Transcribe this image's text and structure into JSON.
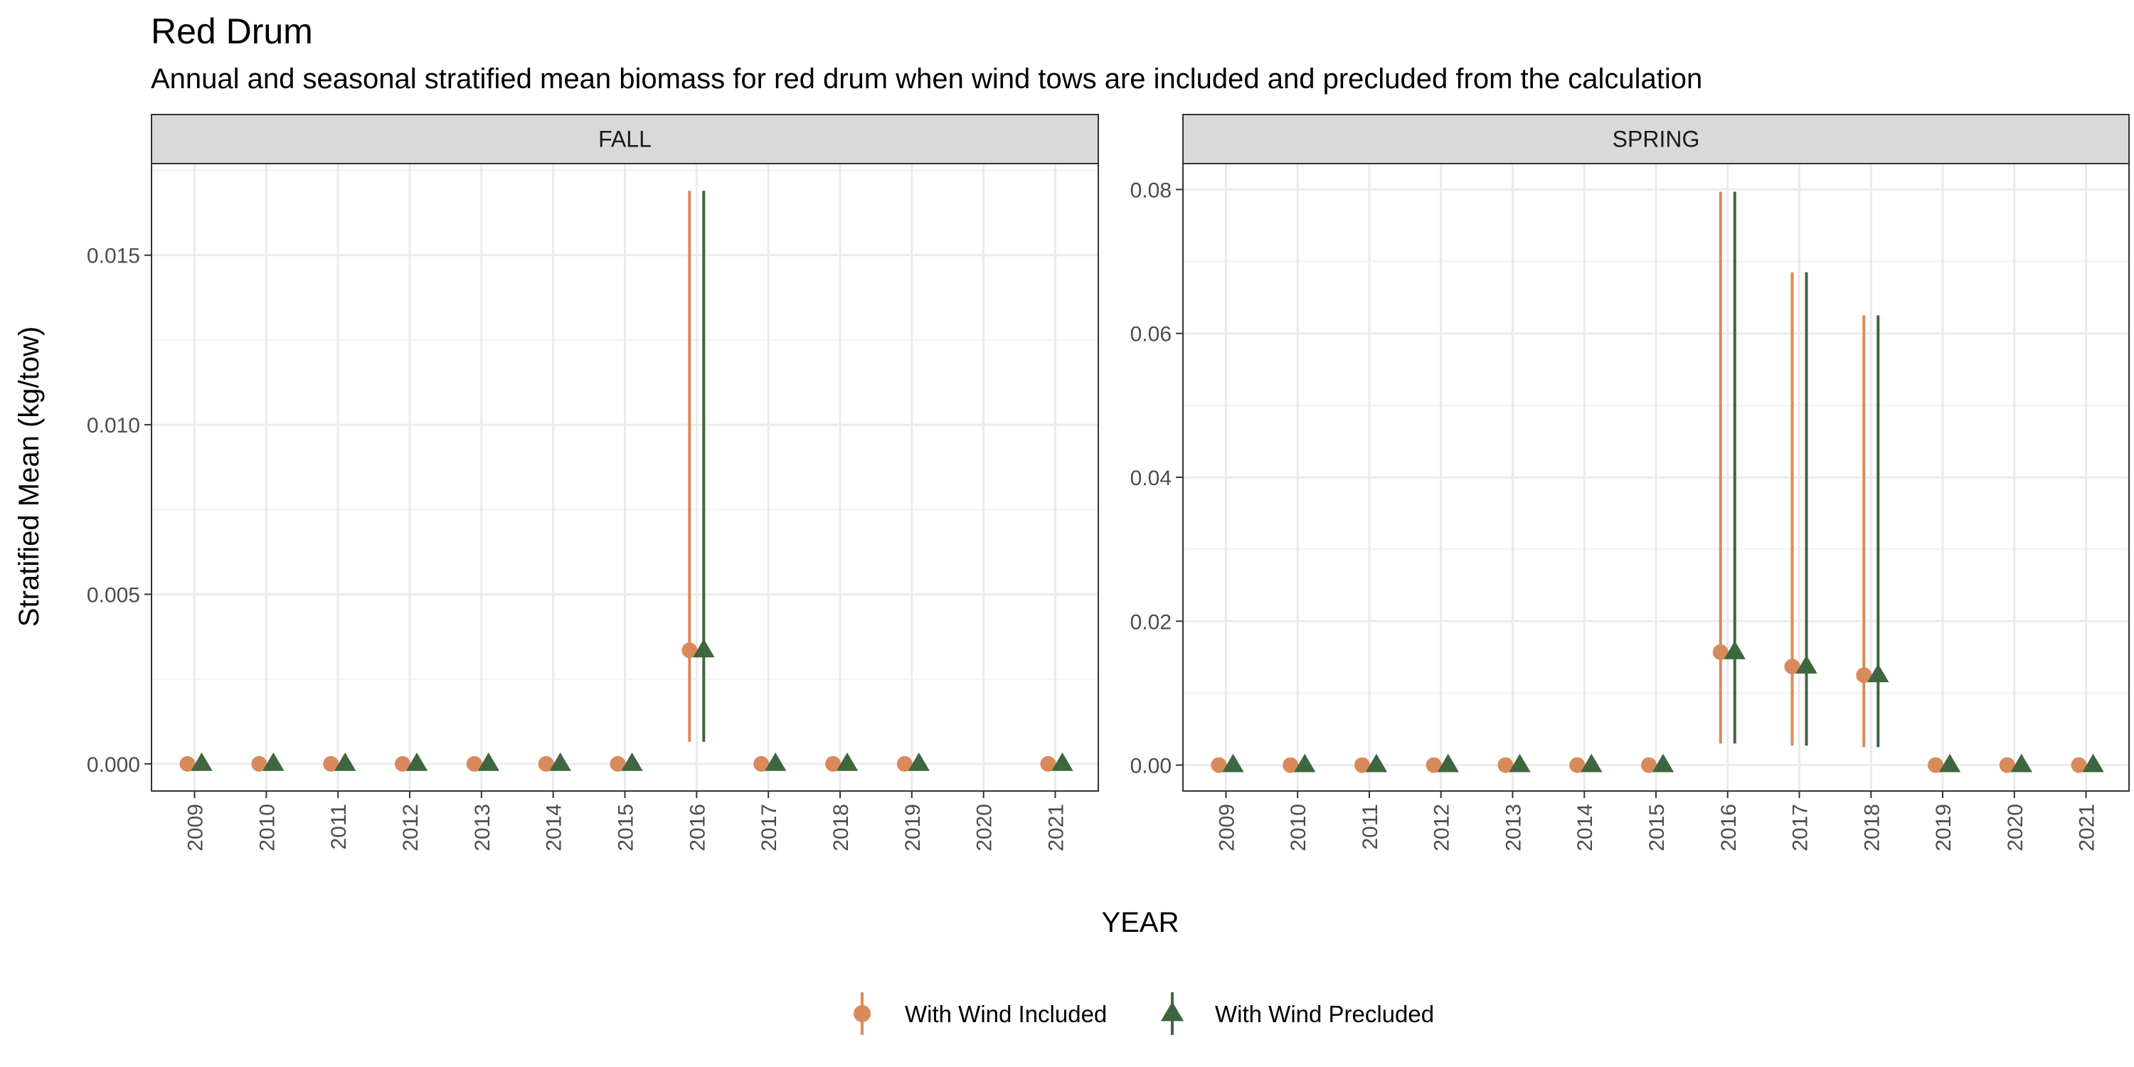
{
  "title": "Red Drum",
  "subtitle": "Annual and seasonal stratified mean biomass for red drum when wind tows are included and precluded from the calculation",
  "chart_data": {
    "type": "scatter",
    "xlabel": "YEAR",
    "ylabel": "Stratified Mean (kg/tow)",
    "grid": true,
    "legend_position": "bottom",
    "legend": [
      {
        "label": "With Wind Included",
        "color": "#D98A5B",
        "shape": "circle"
      },
      {
        "label": "With Wind Precluded",
        "color": "#3E6640",
        "shape": "triangle"
      }
    ],
    "panels": [
      {
        "label": "FALL",
        "x_ticks": [
          "2009",
          "2010",
          "2011",
          "2012",
          "2013",
          "2014",
          "2015",
          "2016",
          "2017",
          "2018",
          "2019",
          "2020",
          "2021"
        ],
        "y_ticks": [
          0,
          0.005,
          0.01,
          0.015
        ],
        "y_tick_labels": [
          "0.000",
          "0.005",
          "0.010",
          "0.015"
        ],
        "ylim": [
          -0.0008,
          0.0177
        ],
        "series": [
          {
            "name": "With Wind Included",
            "points": [
              {
                "x": "2009",
                "y": 0
              },
              {
                "x": "2010",
                "y": 0
              },
              {
                "x": "2011",
                "y": 0
              },
              {
                "x": "2012",
                "y": 0
              },
              {
                "x": "2013",
                "y": 0
              },
              {
                "x": "2014",
                "y": 0
              },
              {
                "x": "2015",
                "y": 0
              },
              {
                "x": "2016",
                "y": 0.00335,
                "lo": 0.00065,
                "hi": 0.0169
              },
              {
                "x": "2017",
                "y": 0
              },
              {
                "x": "2018",
                "y": 0
              },
              {
                "x": "2019",
                "y": 0
              },
              {
                "x": "2021",
                "y": 0
              }
            ]
          },
          {
            "name": "With Wind Precluded",
            "points": [
              {
                "x": "2009",
                "y": 0
              },
              {
                "x": "2010",
                "y": 0
              },
              {
                "x": "2011",
                "y": 0
              },
              {
                "x": "2012",
                "y": 0
              },
              {
                "x": "2013",
                "y": 0
              },
              {
                "x": "2014",
                "y": 0
              },
              {
                "x": "2015",
                "y": 0
              },
              {
                "x": "2016",
                "y": 0.00335,
                "lo": 0.00065,
                "hi": 0.0169
              },
              {
                "x": "2017",
                "y": 0
              },
              {
                "x": "2018",
                "y": 0
              },
              {
                "x": "2019",
                "y": 0
              },
              {
                "x": "2021",
                "y": 0
              }
            ]
          }
        ]
      },
      {
        "label": "SPRING",
        "x_ticks": [
          "2009",
          "2010",
          "2011",
          "2012",
          "2013",
          "2014",
          "2015",
          "2016",
          "2017",
          "2018",
          "2019",
          "2020",
          "2021"
        ],
        "y_ticks": [
          0,
          0.02,
          0.04,
          0.06,
          0.08
        ],
        "y_tick_labels": [
          "0.00",
          "0.02",
          "0.04",
          "0.06",
          "0.08"
        ],
        "ylim": [
          -0.0036,
          0.0836
        ],
        "series": [
          {
            "name": "With Wind Included",
            "points": [
              {
                "x": "2009",
                "y": 0
              },
              {
                "x": "2010",
                "y": 0
              },
              {
                "x": "2011",
                "y": 0
              },
              {
                "x": "2012",
                "y": 0
              },
              {
                "x": "2013",
                "y": 0
              },
              {
                "x": "2014",
                "y": 0
              },
              {
                "x": "2015",
                "y": 0
              },
              {
                "x": "2016",
                "y": 0.0157,
                "lo": 0.003,
                "hi": 0.0797
              },
              {
                "x": "2017",
                "y": 0.0137,
                "lo": 0.0027,
                "hi": 0.0685
              },
              {
                "x": "2018",
                "y": 0.0125,
                "lo": 0.0025,
                "hi": 0.0625
              },
              {
                "x": "2019",
                "y": 0
              },
              {
                "x": "2020",
                "y": 0
              },
              {
                "x": "2021",
                "y": 0
              }
            ]
          },
          {
            "name": "With Wind Precluded",
            "points": [
              {
                "x": "2009",
                "y": 0
              },
              {
                "x": "2010",
                "y": 0
              },
              {
                "x": "2011",
                "y": 0
              },
              {
                "x": "2012",
                "y": 0
              },
              {
                "x": "2013",
                "y": 0
              },
              {
                "x": "2014",
                "y": 0
              },
              {
                "x": "2015",
                "y": 0
              },
              {
                "x": "2016",
                "y": 0.0157,
                "lo": 0.003,
                "hi": 0.0797
              },
              {
                "x": "2017",
                "y": 0.0137,
                "lo": 0.0027,
                "hi": 0.0685
              },
              {
                "x": "2018",
                "y": 0.0125,
                "lo": 0.0025,
                "hi": 0.0625
              },
              {
                "x": "2019",
                "y": 0
              },
              {
                "x": "2020",
                "y": 0
              },
              {
                "x": "2021",
                "y": 0
              }
            ]
          }
        ]
      }
    ]
  }
}
